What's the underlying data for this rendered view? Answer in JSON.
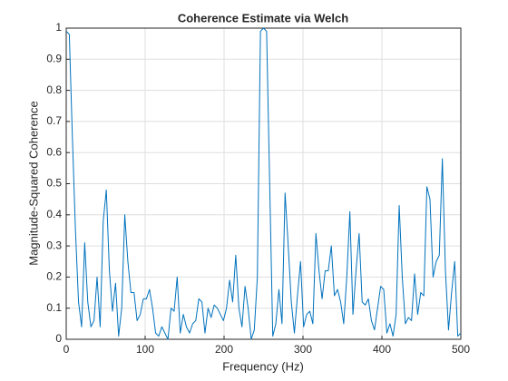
{
  "chart_data": {
    "type": "line",
    "title": "Coherence Estimate via Welch",
    "xlabel": "Frequency (Hz)",
    "ylabel": "Magnitude-Squared Coherence",
    "xlim": [
      0,
      500
    ],
    "ylim": [
      0,
      1
    ],
    "xticks": [
      0,
      100,
      200,
      300,
      400,
      500
    ],
    "yticks": [
      0,
      0.1,
      0.2,
      0.3,
      0.4,
      0.5,
      0.6,
      0.7,
      0.8,
      0.9,
      1
    ],
    "grid": true,
    "x": [
      0,
      3.9,
      7.8,
      11.7,
      15.6,
      19.5,
      23.4,
      27.3,
      31.3,
      35.2,
      39.1,
      43,
      46.9,
      50.8,
      54.7,
      58.6,
      62.5,
      66.4,
      70.3,
      74.2,
      78.1,
      82,
      85.9,
      89.8,
      93.8,
      97.7,
      101.6,
      105.5,
      109.4,
      113.3,
      117.2,
      121.1,
      125,
      128.9,
      132.8,
      136.7,
      140.6,
      144.5,
      148.4,
      152.3,
      156.3,
      160.2,
      164.1,
      168,
      171.9,
      175.8,
      179.7,
      183.6,
      187.5,
      191.4,
      195.3,
      199.2,
      203.1,
      207,
      210.9,
      214.8,
      218.8,
      222.7,
      226.6,
      230.5,
      234.4,
      238.3,
      242.2,
      246.1,
      250,
      253.9,
      257.8,
      261.7,
      265.6,
      269.5,
      273.4,
      277.3,
      281.3,
      285.2,
      289.1,
      293,
      296.9,
      300.8,
      304.7,
      308.6,
      312.5,
      316.4,
      320.3,
      324.2,
      328.1,
      332,
      335.9,
      339.8,
      343.8,
      347.7,
      351.6,
      355.5,
      359.4,
      363.3,
      367.2,
      371.1,
      375,
      378.9,
      382.8,
      386.7,
      390.6,
      394.5,
      398.4,
      402.3,
      406.3,
      410.2,
      414.1,
      418,
      421.9,
      425.8,
      429.7,
      433.6,
      437.5,
      441.4,
      445.3,
      449.2,
      453.1,
      457,
      460.9,
      464.8,
      468.8,
      472.7,
      476.6,
      480.5,
      484.4,
      488.3,
      492.2,
      496.1,
      500
    ],
    "series": [
      {
        "name": "Coherence",
        "color": "#0072BD",
        "values": [
          0.99,
          0.98,
          0.65,
          0.35,
          0.12,
          0.04,
          0.31,
          0.12,
          0.04,
          0.06,
          0.2,
          0.04,
          0.38,
          0.48,
          0.22,
          0.09,
          0.18,
          0.01,
          0.1,
          0.4,
          0.25,
          0.15,
          0.15,
          0.06,
          0.08,
          0.13,
          0.13,
          0.16,
          0.1,
          0.02,
          0.01,
          0.04,
          0.02,
          0,
          0.1,
          0.09,
          0.2,
          0.02,
          0.08,
          0.04,
          0.02,
          0.05,
          0.06,
          0.13,
          0.12,
          0.02,
          0.1,
          0.07,
          0.11,
          0.1,
          0.08,
          0.06,
          0.1,
          0.19,
          0.12,
          0.27,
          0.1,
          0.04,
          0.17,
          0.1,
          0,
          0.03,
          0.2,
          0.99,
          1,
          0.99,
          0.5,
          0.01,
          0.05,
          0.16,
          0.05,
          0.47,
          0.3,
          0.12,
          0.02,
          0.14,
          0.25,
          0.04,
          0.08,
          0.09,
          0.05,
          0.34,
          0.22,
          0.13,
          0.22,
          0.22,
          0.3,
          0.14,
          0.16,
          0.12,
          0.05,
          0.2,
          0.41,
          0.08,
          0.22,
          0.34,
          0.12,
          0.11,
          0.13,
          0.06,
          0.03,
          0.1,
          0.17,
          0.16,
          0.02,
          0.05,
          0.01,
          0.08,
          0.43,
          0.2,
          0.05,
          0.07,
          0.06,
          0.21,
          0.08,
          0.15,
          0.14,
          0.49,
          0.45,
          0.2,
          0.25,
          0.27,
          0.58,
          0.22,
          0.03,
          0.15,
          0.25,
          0.01,
          0.02
        ]
      }
    ]
  }
}
